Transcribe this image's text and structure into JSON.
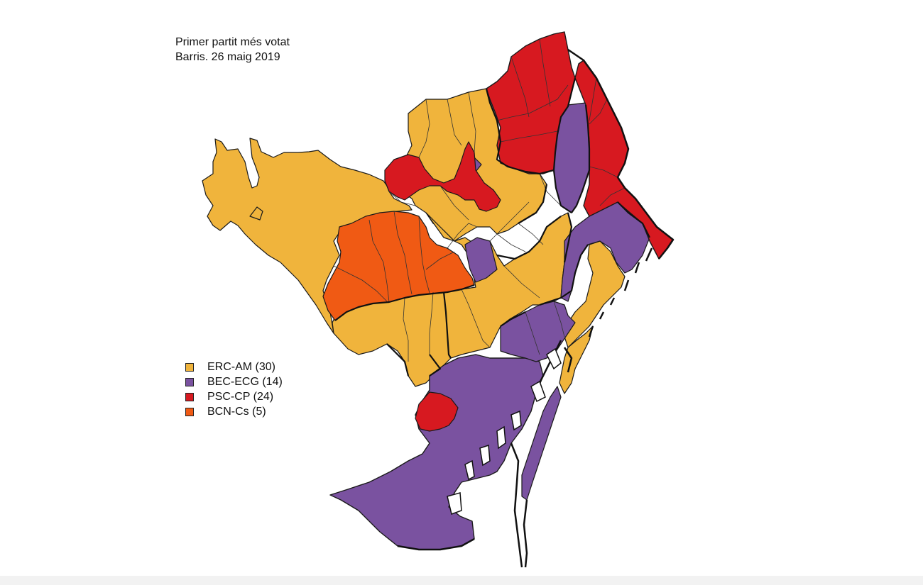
{
  "title": {
    "line1": "Primer partit més votat",
    "line2": "Barris. 26 maig 2019"
  },
  "legend": [
    {
      "label": "ERC-AM (30)",
      "color": "#f0b43c"
    },
    {
      "label": "BEC-ECG (14)",
      "color": "#7a52a0"
    },
    {
      "label": "PSC-CP (24)",
      "color": "#d71920"
    },
    {
      "label": "BCN-Cs (5)",
      "color": "#f05a14"
    }
  ],
  "colors": {
    "erc": "#f0b43c",
    "bec": "#7a52a0",
    "psc": "#d71920",
    "cs": "#f05a14",
    "border": "#1a1a1a"
  }
}
